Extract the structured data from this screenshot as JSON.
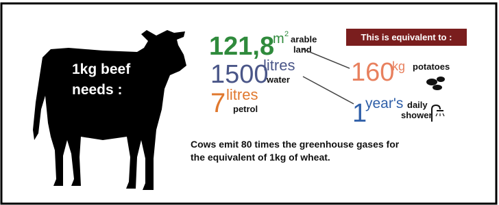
{
  "cow_label": [
    "1kg beef",
    "needs :"
  ],
  "needs": [
    {
      "amount": "121,8",
      "unit": "m",
      "unit_sup": "2",
      "label": [
        "arable",
        "land"
      ]
    },
    {
      "amount": 1500,
      "unit": "litres",
      "label": [
        "water"
      ]
    },
    {
      "amount": 7,
      "unit": "litres",
      "label": [
        "petrol"
      ]
    }
  ],
  "equivalent": {
    "title": "This is equivalent to :",
    "items": [
      {
        "amount": 160,
        "unit": "kg",
        "label": [
          "potatoes"
        ]
      },
      {
        "amount": 1,
        "unit": "year's",
        "label": [
          "daily",
          "shower"
        ]
      }
    ]
  },
  "footnote": [
    "Cows emit 80 times the greenhouse gases for",
    "the equivalent of 1kg of wheat."
  ]
}
